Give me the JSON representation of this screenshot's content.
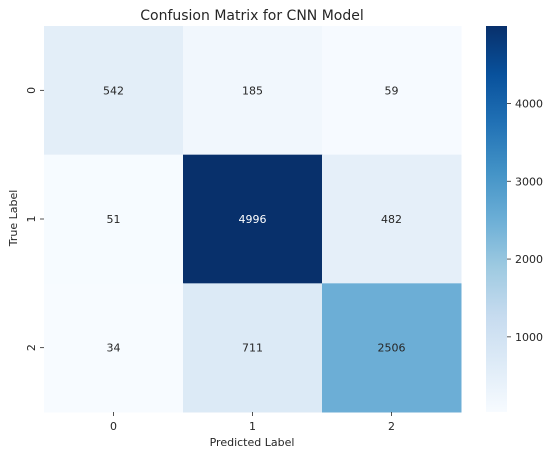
{
  "chart_data": {
    "type": "heatmap",
    "title": "Confusion Matrix for CNN Model",
    "xlabel": "Predicted Label",
    "ylabel": "True Label",
    "x_categories": [
      "0",
      "1",
      "2"
    ],
    "y_categories": [
      "0",
      "1",
      "2"
    ],
    "values": [
      [
        542,
        185,
        59
      ],
      [
        51,
        4996,
        482
      ],
      [
        34,
        711,
        2506
      ]
    ],
    "colormap": "Blues",
    "colorbar": {
      "ticks": [
        1000,
        2000,
        3000,
        4000
      ],
      "range": [
        34,
        4996
      ]
    },
    "grid": false
  }
}
